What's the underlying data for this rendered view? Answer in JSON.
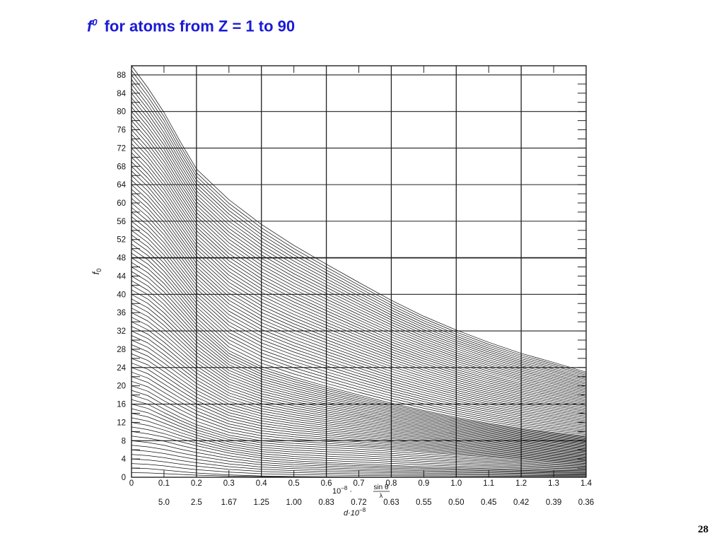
{
  "title": {
    "symbol": "f",
    "superscript": "0",
    "text": "for atoms from Z = 1 to 90"
  },
  "page_number": "28",
  "chart_data": {
    "type": "line",
    "ylabel": "f",
    "ylabel_sub": "0",
    "xlabel_prefix": "10",
    "xlabel_exp": "−8",
    "xlabel_frac_num": "sin θ",
    "xlabel_frac_den": "λ",
    "d_label": "d·10",
    "d_label_exp": "−8",
    "xlim": [
      0,
      1.4
    ],
    "ylim": [
      0,
      90
    ],
    "x_ticks": [
      "0",
      "0.1",
      "0.2",
      "0.3",
      "0.4",
      "0.5",
      "0.6",
      "0.7",
      "0.8",
      "0.9",
      "1.0",
      "1.1",
      "1.2",
      "1.3",
      "1.4"
    ],
    "y_ticks": [
      "0",
      "4",
      "8",
      "12",
      "16",
      "20",
      "24",
      "28",
      "32",
      "36",
      "40",
      "44",
      "48",
      "52",
      "56",
      "60",
      "64",
      "68",
      "72",
      "76",
      "80",
      "84",
      "88"
    ],
    "d_ticks": [
      {
        "x": 0.1,
        "label": "5.0"
      },
      {
        "x": 0.2,
        "label": "2.5"
      },
      {
        "x": 0.3,
        "label": "1.67"
      },
      {
        "x": 0.4,
        "label": "1.25"
      },
      {
        "x": 0.5,
        "label": "1.00"
      },
      {
        "x": 0.6,
        "label": "0.83"
      },
      {
        "x": 0.7,
        "label": "0.72"
      },
      {
        "x": 0.8,
        "label": "0.63"
      },
      {
        "x": 0.9,
        "label": "0.55"
      },
      {
        "x": 1.0,
        "label": "0.50"
      },
      {
        "x": 1.1,
        "label": "0.45"
      },
      {
        "x": 1.2,
        "label": "0.42"
      },
      {
        "x": 1.3,
        "label": "0.39"
      },
      {
        "x": 1.4,
        "label": "0.36"
      }
    ],
    "z_min": 1,
    "z_max": 90,
    "curve_x": [
      0,
      0.05,
      0.1,
      0.15,
      0.2,
      0.3,
      0.4,
      0.5,
      0.6,
      0.7,
      0.8,
      0.9,
      1.0,
      1.1,
      1.2,
      1.3,
      1.4
    ],
    "reference_curves": [
      {
        "z": 90,
        "values": [
          90,
          85.2,
          79.8,
          73.4,
          67.4,
          60.7,
          55.3,
          50.7,
          46.6,
          42.6,
          38.7,
          35.2,
          32.2,
          29.5,
          27.1,
          25.1,
          23.0
        ]
      },
      {
        "z": 48,
        "values": [
          48,
          45.7,
          42.4,
          38.3,
          34.1,
          27.7,
          24.2,
          21.9,
          19.9,
          18.0,
          16.2,
          14.6,
          13.1,
          11.8,
          10.7,
          9.8,
          9.0
        ]
      },
      {
        "z": 18,
        "values": [
          18,
          16.9,
          14.9,
          13.1,
          11.5,
          9.2,
          8.0,
          7.4,
          7.0,
          6.6,
          6.1,
          5.5,
          4.9,
          4.4,
          3.9,
          3.4,
          3.0
        ]
      },
      {
        "z": 10,
        "values": [
          10,
          9.5,
          8.8,
          7.8,
          6.9,
          5.3,
          4.2,
          3.6,
          3.2,
          2.9,
          2.6,
          2.3,
          2.1,
          1.9,
          1.7,
          1.5,
          1.4
        ]
      },
      {
        "z": 2,
        "values": [
          2,
          1.88,
          1.59,
          1.24,
          0.93,
          0.53,
          0.29,
          0.16,
          0.09,
          0.05,
          0.03,
          0.02,
          0.01,
          0.01,
          0.01,
          0.0,
          0.0
        ]
      }
    ],
    "grid": true,
    "grid_major_x_step": 0.2,
    "grid_major_y_step": 8,
    "legend": "none"
  }
}
